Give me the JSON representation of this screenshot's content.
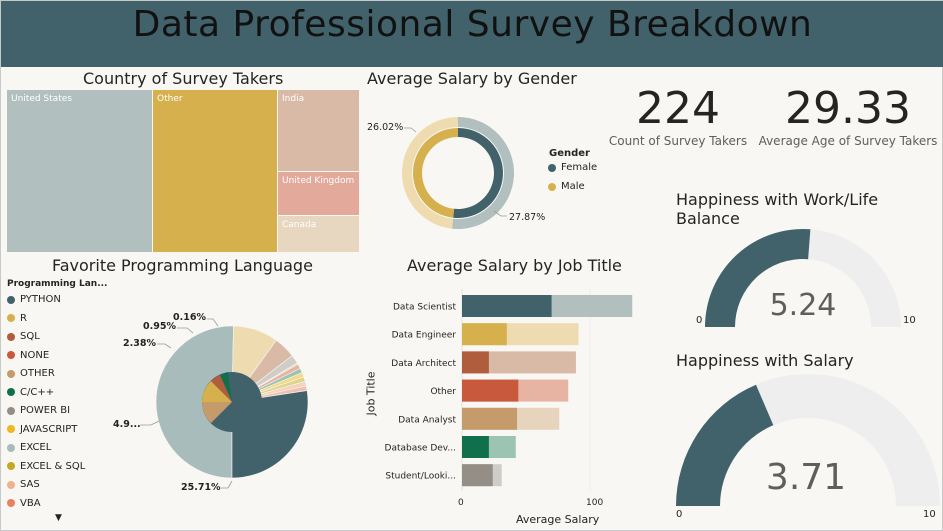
{
  "page": {
    "title": "Data Professional Survey Breakdown"
  },
  "country": {
    "title": "Country of Survey Takers",
    "items": [
      {
        "label": "United States",
        "color": "#b1bfbe"
      },
      {
        "label": "Other",
        "color": "#d5b04c"
      },
      {
        "label": "India",
        "color": "#d9baa7"
      },
      {
        "label": "United Kingdom",
        "color": "#e3aa9c"
      },
      {
        "label": "Canada",
        "color": "#e7d6c0"
      }
    ]
  },
  "gender": {
    "title": "Average Salary by Gender",
    "legend_title": "Gender",
    "items": [
      {
        "label": "Female",
        "color": "#41626b"
      },
      {
        "label": "Male",
        "color": "#d5b04c"
      }
    ],
    "labels": [
      "26.02%",
      "27.87%"
    ]
  },
  "kpis": [
    {
      "value": "224",
      "label": "Count of Survey Takers"
    },
    {
      "value": "29.33",
      "label": "Average Age of Survey Takers"
    }
  ],
  "language": {
    "title": "Favorite Programming Language",
    "legend_title": "Programming Lan...",
    "items": [
      {
        "label": "PYTHON",
        "color": "#41626b"
      },
      {
        "label": "R",
        "color": "#d5b04c"
      },
      {
        "label": "SQL",
        "color": "#b05d3e"
      },
      {
        "label": "NONE",
        "color": "#c9593d"
      },
      {
        "label": "OTHER",
        "color": "#c59b6b"
      },
      {
        "label": "C/C++",
        "color": "#10704e"
      },
      {
        "label": "POWER BI",
        "color": "#948e86"
      },
      {
        "label": "JAVASCRIPT",
        "color": "#f0b81a"
      },
      {
        "label": "EXCEL",
        "color": "#a9bcbc"
      },
      {
        "label": "EXCEL & SQL",
        "color": "#c2a920"
      },
      {
        "label": "SAS",
        "color": "#efb28c"
      },
      {
        "label": "VBA",
        "color": "#e8815e"
      }
    ],
    "labels": [
      "0.16%",
      "0.95%",
      "2.38%",
      "4.9...",
      "25.71%"
    ]
  },
  "job": {
    "title": "Average Salary by Job Title",
    "ylabel": "Job Title",
    "xlabel": "Average Salary",
    "ticks": [
      "0",
      "100"
    ]
  },
  "happiness_work": {
    "title_line1": "Happiness with Work/Life",
    "title_line2": "Balance",
    "value": "5.24",
    "min": "0",
    "max": "10"
  },
  "happiness_salary": {
    "title": "Happiness with Salary",
    "value": "3.71",
    "min": "0",
    "max": "10"
  },
  "chart_data": [
    {
      "type": "bar",
      "title": "Average Salary by Job Title",
      "xlabel": "Average Salary",
      "ylabel": "Job Title",
      "categories": [
        "Data Scientist",
        "Data Engineer",
        "Data Architect",
        "Other",
        "Data Analyst",
        "Database Dev...",
        "Student/Looki..."
      ],
      "values": [
        133,
        91,
        89,
        83,
        76,
        42,
        31
      ],
      "highlight": [
        70,
        35,
        21,
        44,
        43,
        21,
        24
      ],
      "colors": [
        "#41626b",
        "#d5b04c",
        "#b05d3e",
        "#c9593d",
        "#c59b6b",
        "#10704e",
        "#948e86"
      ],
      "light_colors": [
        "#b1bfbe",
        "#eedcb0",
        "#d9baa7",
        "#e7b3a3",
        "#e6d4bd",
        "#9cc4b2",
        "#d0ccc7"
      ],
      "xlim": [
        0,
        140
      ]
    },
    {
      "type": "pie",
      "title": "Average Salary by Gender",
      "categories": [
        "Female",
        "Male"
      ],
      "values": [
        27.87,
        26.02
      ]
    },
    {
      "type": "pie",
      "title": "Favorite Programming Language",
      "categories": [
        "EXCEL",
        "R",
        "SQL",
        "POWER BI",
        "OTHER",
        "NONE",
        "C/C++",
        "JAVASCRIPT",
        "EXCEL & SQL",
        "SAS",
        "VBA",
        "PYTHON"
      ],
      "values": [
        25.71,
        4.9,
        2.38,
        0.95,
        0.16,
        0.5,
        0.5,
        0.5,
        0.5,
        0.5,
        0.5,
        14
      ],
      "colors": [
        "#a9bcbc",
        "#eedcb0",
        "#d9baa7",
        "#d0ccc7",
        "#e6d4bd",
        "#e7b3a3",
        "#9cc4b2",
        "#f5d88a",
        "#e0d48c",
        "#f5d2bd",
        "#f2c0ae",
        "#41626b"
      ]
    },
    {
      "type": "gauge",
      "title": "Happiness with Work/Life Balance",
      "value": 5.24,
      "min": 0,
      "max": 10
    },
    {
      "type": "gauge",
      "title": "Happiness with Salary",
      "value": 3.71,
      "min": 0,
      "max": 10
    }
  ]
}
